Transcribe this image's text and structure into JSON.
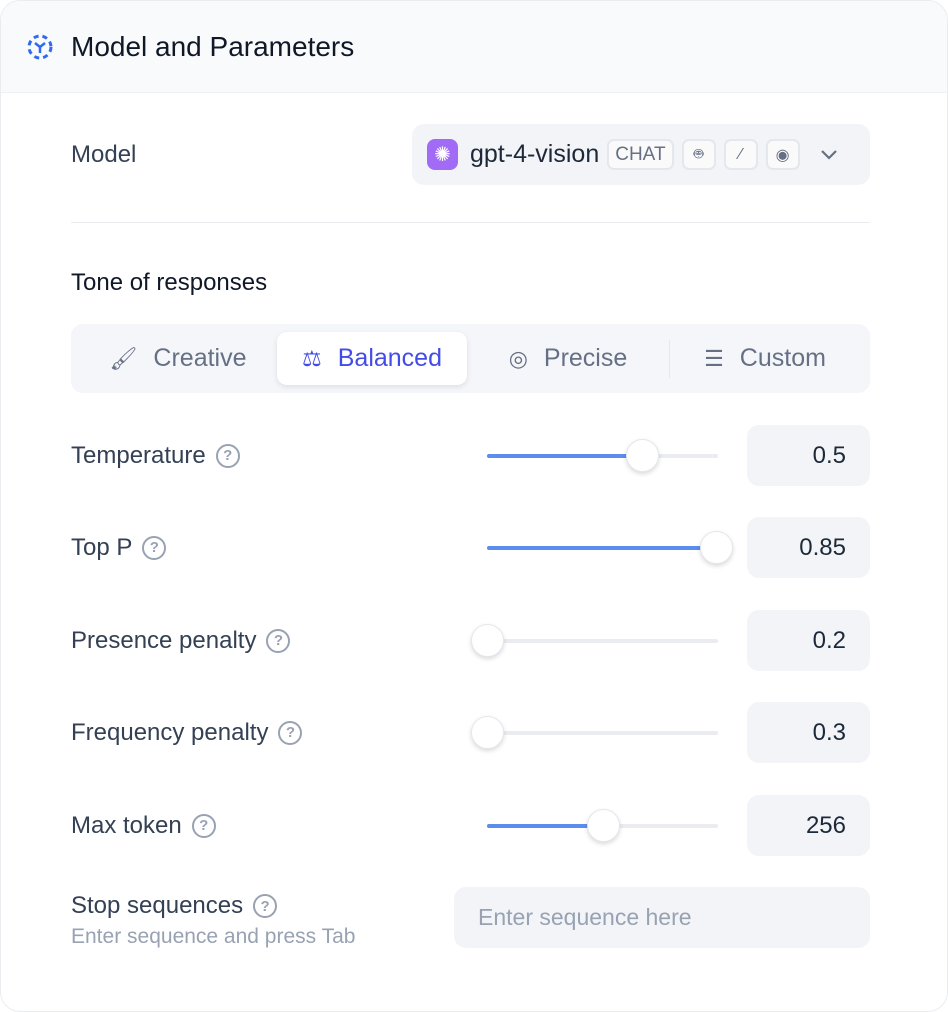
{
  "header": {
    "title": "Model and Parameters",
    "icon": "dashed-cube-icon"
  },
  "model": {
    "label": "Model",
    "name": "gpt-4-vision",
    "badge": "CHAT",
    "feature_icons": [
      "robot-icon",
      "magic-wand-icon",
      "eye-icon"
    ],
    "logo": "openai-icon"
  },
  "tone": {
    "label": "Tone of responses",
    "tabs": [
      {
        "label": "Creative",
        "icon": "brush-icon"
      },
      {
        "label": "Balanced",
        "icon": "scale-icon",
        "active": true
      },
      {
        "label": "Precise",
        "icon": "target-icon"
      },
      {
        "label": "Custom",
        "icon": "sliders-icon"
      }
    ]
  },
  "params": [
    {
      "label": "Temperature",
      "value": "0.5",
      "slider_fraction": 0.67
    },
    {
      "label": "Top P",
      "value": "0.85",
      "slider_fraction": 0.99
    },
    {
      "label": "Presence penalty",
      "value": "0.2",
      "slider_fraction": 0
    },
    {
      "label": "Frequency penalty",
      "value": "0.3",
      "slider_fraction": 0
    },
    {
      "label": "Max token",
      "value": "256",
      "slider_fraction": 0.5
    }
  ],
  "stop": {
    "label": "Stop sequences",
    "hint": "Enter sequence and press Tab",
    "placeholder": "Enter sequence here"
  },
  "colors": {
    "accent": "#444ce7",
    "slider": "#5b8def",
    "logo": "#a16bf5"
  }
}
